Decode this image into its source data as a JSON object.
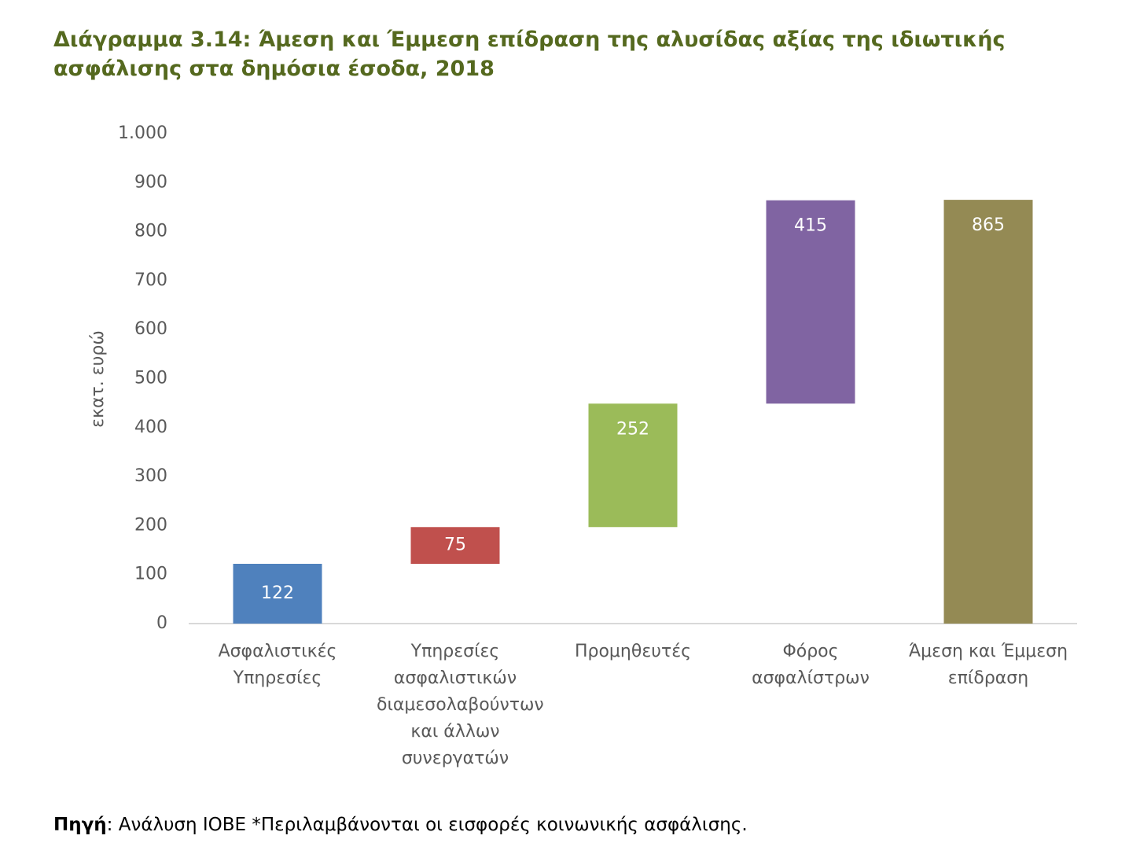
{
  "chart_data": {
    "type": "waterfall",
    "title": "Διάγραμμα 3.14: Άμεση και Έμμεση επίδραση της αλυσίδας αξίας της  ιδιωτικής ασφάλισης στα δημόσια έσοδα, 2018",
    "y_label": "εκατ. ευρώ",
    "categories": [
      "Ασφαλιστικές Υπηρεσίες",
      "Υπηρεσίες ασφαλιστικών διαμεσολαβούντων και άλλων συνεργατών",
      "Προμηθευτές",
      "Φόρος ασφαλίστρων",
      "Άμεση και Έμμεση επίδραση"
    ],
    "values": [
      122,
      75,
      252,
      415,
      865
    ],
    "totals": [
      false,
      false,
      false,
      false,
      true
    ],
    "colors": [
      "#4f81bd",
      "#c0504d",
      "#9bbb59",
      "#8064a2",
      "#948a54"
    ],
    "ylim": [
      0,
      1000
    ],
    "yticks": [
      0,
      100,
      200,
      300,
      400,
      500,
      600,
      700,
      800,
      900,
      {
        "value": 1000,
        "label": "1.000"
      }
    ],
    "source_label": "Πηγή",
    "source_text": ": Ανάλυση ΙΟΒΕ *Περιλαμβάνονται οι εισφορές κοινωνικής ασφάλισης."
  }
}
